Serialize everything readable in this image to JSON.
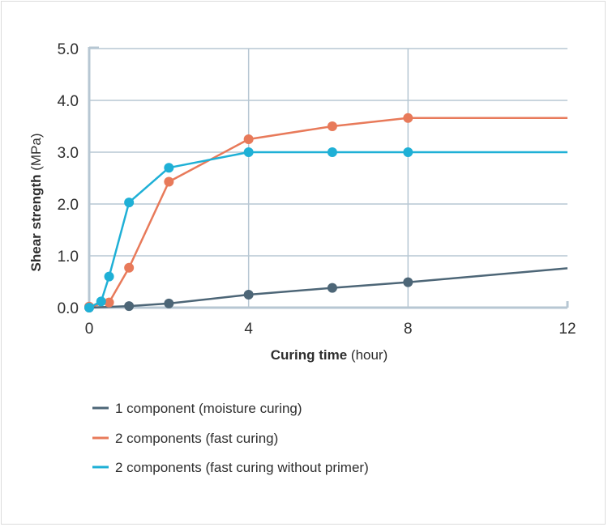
{
  "chart_data": {
    "type": "line",
    "xlabel": {
      "bold": "Curing time",
      "unit": " (hour)"
    },
    "ylabel": {
      "bold": "Shear strength",
      "unit": " (MPa)"
    },
    "xlim": [
      0,
      12
    ],
    "ylim": [
      0,
      5
    ],
    "x_ticks": [
      "0",
      "4",
      "8",
      "12"
    ],
    "x_tick_values": [
      0,
      4,
      8,
      12
    ],
    "y_ticks": [
      "0.0",
      "1.0",
      "2.0",
      "3.0",
      "4.0",
      "5.0"
    ],
    "y_tick_values": [
      0,
      1,
      2,
      3,
      4,
      5
    ],
    "grid": true,
    "legend_position": "bottom",
    "series": [
      {
        "name": "1 component (moisture curing)",
        "color": "#4d6677",
        "points": [
          [
            0,
            0
          ],
          [
            1,
            0.03
          ],
          [
            2,
            0.08
          ],
          [
            4,
            0.25
          ],
          [
            6.1,
            0.38
          ],
          [
            8,
            0.49
          ]
        ],
        "line_end": [
          12,
          0.76
        ]
      },
      {
        "name": "2 components (fast curing)",
        "color": "#e87a5a",
        "points": [
          [
            0,
            0.02
          ],
          [
            0.5,
            0.1
          ],
          [
            1,
            0.77
          ],
          [
            2,
            2.43
          ],
          [
            4,
            3.25
          ],
          [
            6.1,
            3.5
          ],
          [
            8,
            3.66
          ]
        ],
        "line_end": [
          12,
          3.66
        ]
      },
      {
        "name": "2 components (fast curing without primer)",
        "color": "#1fb0d6",
        "points": [
          [
            0,
            0
          ],
          [
            0.3,
            0.12
          ],
          [
            0.5,
            0.6
          ],
          [
            1,
            2.03
          ],
          [
            2,
            2.7
          ],
          [
            4,
            3.0
          ],
          [
            6.1,
            3.0
          ],
          [
            8,
            3.0
          ]
        ],
        "line_end": [
          12,
          3.0
        ]
      }
    ]
  }
}
